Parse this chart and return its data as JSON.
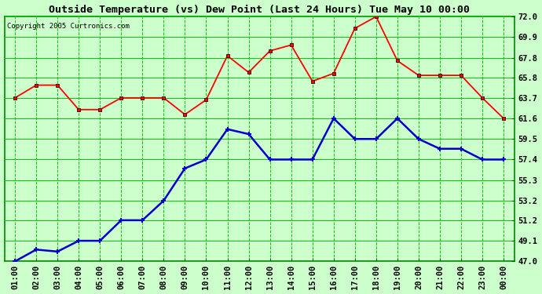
{
  "title": "Outside Temperature (vs) Dew Point (Last 24 Hours) Tue May 10 00:00",
  "copyright": "Copyright 2005 Curtronics.com",
  "background_color": "#ccffcc",
  "x_labels": [
    "01:00",
    "02:00",
    "03:00",
    "04:00",
    "05:00",
    "06:00",
    "07:00",
    "08:00",
    "09:00",
    "10:00",
    "11:00",
    "12:00",
    "13:00",
    "14:00",
    "15:00",
    "16:00",
    "17:00",
    "18:00",
    "19:00",
    "20:00",
    "21:00",
    "22:00",
    "23:00",
    "00:00"
  ],
  "temp_color": "#ff0000",
  "dew_color": "#0000cc",
  "grid_color": "#00cc00",
  "ylim": [
    47.0,
    72.0
  ],
  "yticks": [
    47.0,
    49.1,
    51.2,
    53.2,
    55.3,
    57.4,
    59.5,
    61.6,
    63.7,
    65.8,
    67.8,
    69.9,
    72.0
  ],
  "temp_data": [
    63.7,
    65.0,
    65.0,
    62.5,
    62.5,
    63.7,
    63.7,
    63.7,
    62.0,
    63.5,
    68.0,
    66.3,
    68.5,
    69.1,
    65.4,
    66.2,
    70.8,
    72.0,
    67.5,
    66.0,
    66.0,
    66.0,
    63.7,
    61.6
  ],
  "dew_data": [
    47.0,
    48.2,
    48.0,
    49.1,
    49.1,
    51.2,
    51.2,
    53.2,
    56.5,
    57.4,
    60.5,
    60.0,
    57.4,
    57.4,
    57.4,
    61.6,
    59.5,
    59.5,
    61.6,
    59.5,
    58.5,
    58.5,
    57.4,
    57.4
  ],
  "marker_edge_color": "#330000",
  "title_fontsize": 9.5,
  "tick_fontsize": 7.5
}
